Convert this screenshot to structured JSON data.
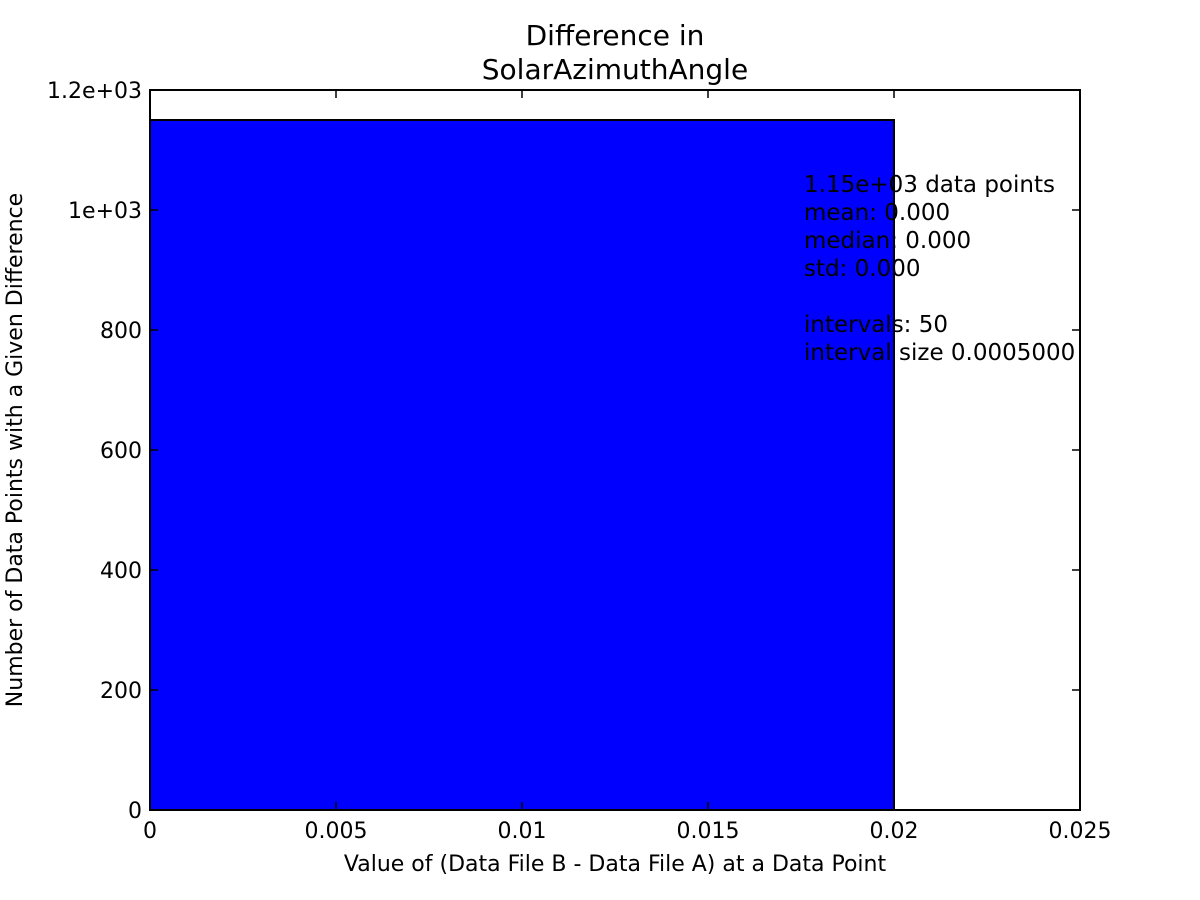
{
  "chart_data": {
    "type": "bar",
    "title_lines": [
      "Difference in",
      "SolarAzimuthAngle"
    ],
    "xlabel": "Value of (Data File B - Data File A) at a Data Point",
    "ylabel": "Number of Data Points with a Given Difference",
    "xlim": [
      0,
      0.025
    ],
    "ylim": [
      0,
      1200
    ],
    "x_ticks": [
      0,
      0.005,
      0.01,
      0.015,
      0.02,
      0.025
    ],
    "x_tick_labels": [
      "0",
      "0.005",
      "0.01",
      "0.015",
      "0.02",
      "0.025"
    ],
    "y_ticks": [
      0,
      200,
      400,
      600,
      800,
      1000,
      1200
    ],
    "y_tick_labels": [
      "0",
      "200",
      "400",
      "600",
      "800",
      "1e+03",
      "1.2e+03"
    ],
    "bars": [
      {
        "x_start": 0,
        "x_end": 0.02,
        "value": 1150
      }
    ],
    "bar_color": "#0000ff",
    "grid": false,
    "stats_text": [
      "1.15e+03 data points",
      "mean: 0.000",
      "median: 0.000",
      "std: 0.000",
      "",
      "intervals: 50",
      "interval size 0.0005000"
    ]
  }
}
